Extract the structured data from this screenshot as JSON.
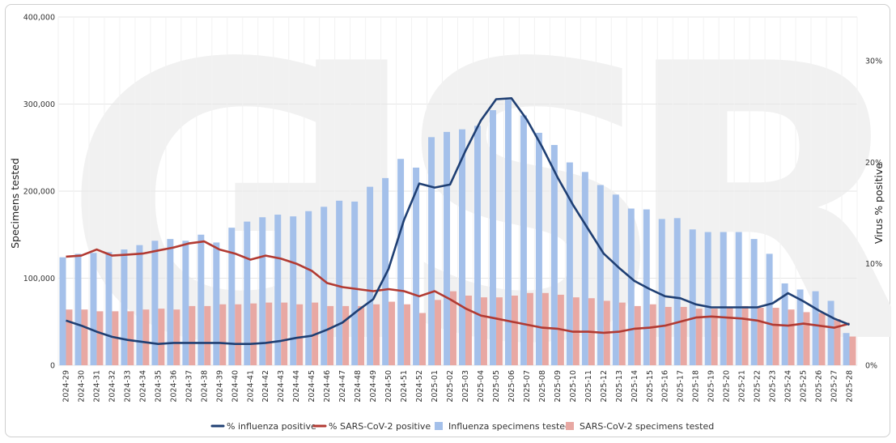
{
  "chart_data": {
    "type": "bar+line",
    "title": "",
    "xlabel": "",
    "ylabel": "Specimens tested",
    "y2label": "Virus % positive",
    "ylim": [
      0,
      400000
    ],
    "y2lim": [
      0,
      34.3
    ],
    "yticks": [
      "0",
      "100,000",
      "200,000",
      "300,000",
      "400,000"
    ],
    "y2ticks": [
      "0%",
      "10%",
      "20%",
      "30%"
    ],
    "grid": true,
    "legend_position": "bottom",
    "categories": [
      "2024-29",
      "2024-30",
      "2024-31",
      "2024-32",
      "2024-33",
      "2024-34",
      "2024-35",
      "2024-36",
      "2024-37",
      "2024-38",
      "2024-39",
      "2024-40",
      "2024-41",
      "2024-42",
      "2024-43",
      "2024-44",
      "2024-45",
      "2024-46",
      "2024-47",
      "2024-48",
      "2024-49",
      "2024-50",
      "2024-51",
      "2024-52",
      "2025-01",
      "2025-02",
      "2025-03",
      "2025-04",
      "2025-05",
      "2025-06",
      "2025-07",
      "2025-08",
      "2025-09",
      "2025-10",
      "2025-11",
      "2025-12",
      "2025-13",
      "2025-14",
      "2025-15",
      "2025-16",
      "2025-17",
      "2025-18",
      "2025-19",
      "2025-20",
      "2025-21",
      "2025-22",
      "2025-23",
      "2025-24",
      "2025-25",
      "2025-26",
      "2025-27",
      "2025-28"
    ],
    "series": [
      {
        "name": "Influenza specimens tested",
        "kind": "bar",
        "axis": "left",
        "color": "#a4c0ea",
        "values": [
          124000,
          128000,
          129000,
          130000,
          133000,
          138000,
          143000,
          145000,
          143000,
          150000,
          141000,
          158000,
          165000,
          170000,
          173000,
          171000,
          177000,
          182000,
          189000,
          188000,
          205000,
          215000,
          237000,
          227000,
          262000,
          268000,
          271000,
          275000,
          293000,
          305000,
          287000,
          267000,
          253000,
          233000,
          222000,
          207000,
          196000,
          180000,
          179000,
          168000,
          169000,
          156000,
          153000,
          153000,
          153000,
          145000,
          128000,
          94000,
          87000,
          85000,
          74000,
          37000
        ]
      },
      {
        "name": "SARS-CoV-2 specimens tested",
        "kind": "bar",
        "axis": "left",
        "color": "#e8a8a3",
        "values": [
          64000,
          64000,
          62000,
          62000,
          62000,
          64000,
          65000,
          64000,
          68000,
          68000,
          70000,
          70000,
          71000,
          72000,
          72000,
          70000,
          72000,
          68000,
          68000,
          68000,
          70000,
          73000,
          70000,
          60000,
          75000,
          85000,
          80000,
          78000,
          78000,
          80000,
          83000,
          83000,
          81000,
          78000,
          77000,
          74000,
          72000,
          68000,
          70000,
          67000,
          67000,
          65000,
          65000,
          67000,
          68000,
          66000,
          66000,
          64000,
          61000,
          60000,
          53000,
          33000
        ]
      },
      {
        "name": "% influenza positive",
        "kind": "line",
        "axis": "right",
        "color": "#1f3f73",
        "values": [
          4.4,
          3.9,
          3.3,
          2.8,
          2.5,
          2.3,
          2.1,
          2.2,
          2.2,
          2.2,
          2.2,
          2.1,
          2.1,
          2.2,
          2.4,
          2.7,
          2.9,
          3.5,
          4.2,
          5.4,
          6.5,
          9.5,
          14.3,
          17.9,
          17.5,
          17.8,
          21.1,
          24.1,
          26.2,
          26.3,
          24.2,
          21.5,
          18.5,
          15.8,
          13.4,
          11.0,
          9.6,
          8.3,
          7.5,
          6.8,
          6.6,
          6.0,
          5.7,
          5.7,
          5.7,
          5.7,
          6.1,
          7.1,
          6.3,
          5.4,
          4.6,
          4.0
        ]
      },
      {
        "name": "% SARS-CoV-2 positive",
        "kind": "line",
        "axis": "right",
        "color": "#b23a32",
        "values": [
          10.7,
          10.8,
          11.4,
          10.8,
          10.9,
          11.0,
          11.3,
          11.6,
          12.0,
          12.2,
          11.4,
          11.0,
          10.4,
          10.8,
          10.5,
          10.0,
          9.3,
          8.1,
          7.7,
          7.5,
          7.3,
          7.5,
          7.3,
          6.8,
          7.3,
          6.5,
          5.6,
          4.9,
          4.6,
          4.3,
          4.0,
          3.7,
          3.6,
          3.3,
          3.3,
          3.2,
          3.3,
          3.6,
          3.7,
          3.9,
          4.3,
          4.7,
          4.8,
          4.7,
          4.6,
          4.4,
          4.0,
          3.9,
          4.1,
          3.9,
          3.7,
          4.1
        ]
      }
    ]
  }
}
